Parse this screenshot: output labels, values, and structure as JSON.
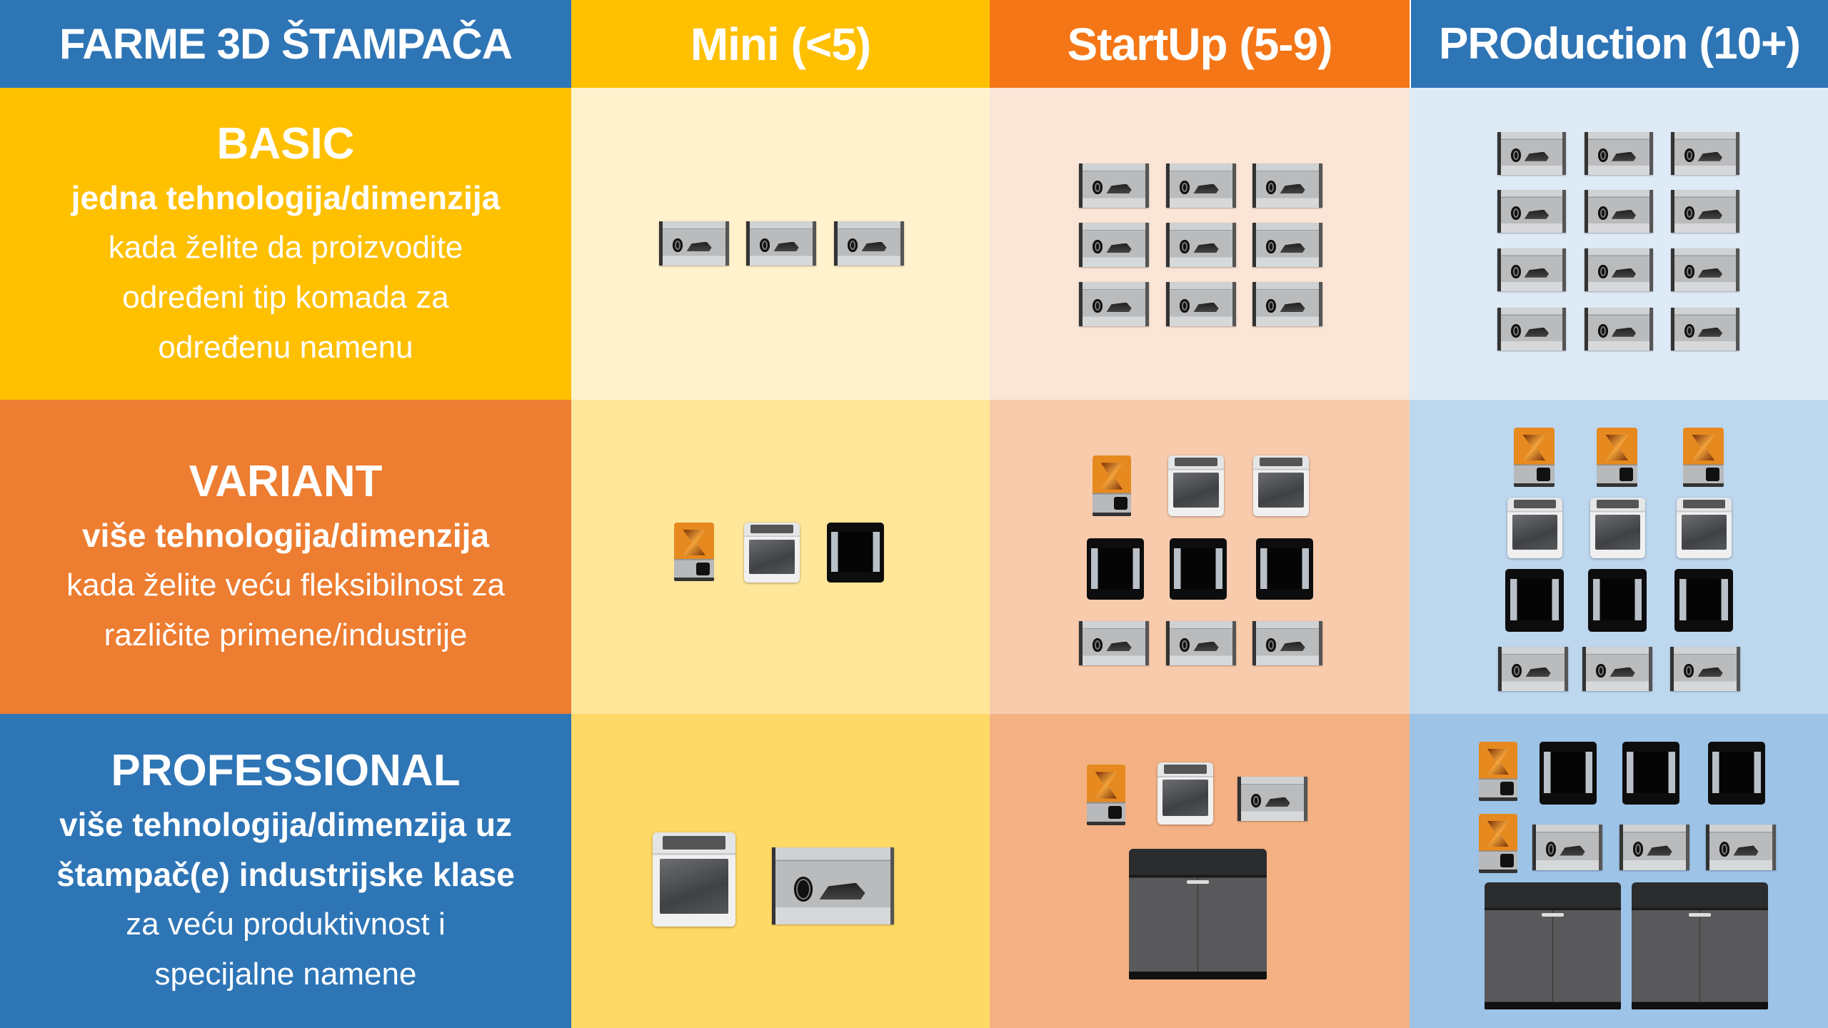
{
  "header": {
    "title": "FARME 3D ŠTAMPAČA",
    "columns": [
      "Mini (<5)",
      "StartUp (5-9)",
      "PROduction (10+)"
    ]
  },
  "rows": [
    {
      "title": "BASIC",
      "subtitle": "jedna tehnologija/dimenzija",
      "description": [
        "kada želite da proizvodite",
        "određeni tip komada za",
        "određenu namenu"
      ]
    },
    {
      "title": "VARIANT",
      "subtitle": "više tehnologija/dimenzija",
      "description": [
        "kada želite veću fleksibilnost za",
        "različite primene/industrije"
      ]
    },
    {
      "title": "PROFESSIONAL",
      "subtitle": [
        "više tehnologija/dimenzija uz",
        "štampač(e) industrijske klase"
      ],
      "description": [
        "za veću produktivnost i",
        "specijalne namene"
      ]
    }
  ],
  "colors": {
    "header_title_bg": "#2e75b6",
    "mini": "#ffc000",
    "startup": "#f47616",
    "production": "#2e75b6",
    "basic": "#ffc000",
    "variant": "#ed7d31",
    "professional": "#2e75b6",
    "cells": [
      [
        "#fff2cc",
        "#fbe5d6",
        "#deebf7"
      ],
      [
        "#ffe699",
        "#f8cbad",
        "#bdd7ee"
      ],
      [
        "#ffd966",
        "#f4b183",
        "#9dc3e6"
      ]
    ]
  },
  "printer_icons": [
    "markforged-printer-icon",
    "form2-resin-printer-icon",
    "sindoh-white-printer-icon",
    "sindoh-black-printer-icon",
    "stratasys-industrial-printer-icon"
  ]
}
